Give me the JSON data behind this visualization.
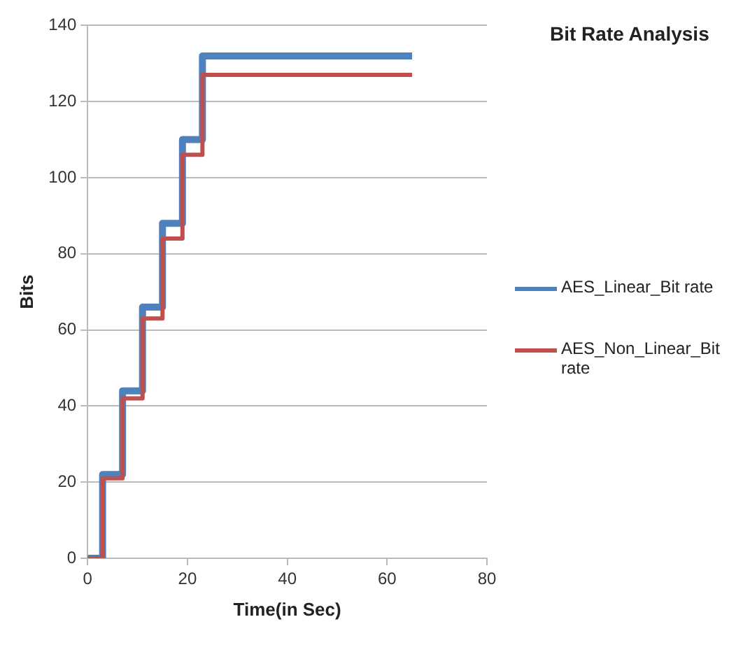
{
  "chart_data": {
    "type": "step",
    "title": "Bit Rate Analysis",
    "xlabel": "Time(in Sec)",
    "ylabel": "Bits",
    "x": [
      0,
      3,
      7,
      11,
      15,
      19,
      23,
      65
    ],
    "series": [
      {
        "name": "AES_Linear_Bit rate",
        "color": "#4f81bd",
        "values": [
          0,
          22,
          44,
          66,
          88,
          110,
          132,
          132
        ]
      },
      {
        "name": "AES_Non_Linear_Bit rate",
        "color": "#c0504d",
        "values": [
          0,
          21,
          42,
          63,
          84,
          106,
          127,
          127
        ]
      }
    ],
    "xlim": [
      0,
      80
    ],
    "xticks": [
      0,
      20,
      40,
      60,
      80
    ],
    "ylim": [
      0,
      140
    ],
    "yticks": [
      0,
      20,
      40,
      60,
      80,
      100,
      120,
      140
    ],
    "grid": "y",
    "legend": "right",
    "marker": "none",
    "line_style": "solid"
  }
}
